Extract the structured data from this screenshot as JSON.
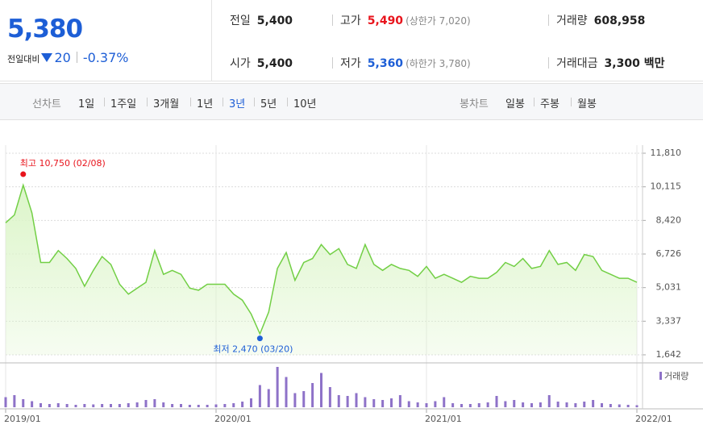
{
  "quote": {
    "price": "5,380",
    "change_label": "전일대비",
    "change": "20",
    "change_pct": "-0.37%"
  },
  "summary": {
    "rows": [
      [
        {
          "label": "전일",
          "value": "5,400"
        },
        {
          "label": "고가",
          "value": "5,490",
          "limit": "(상한가 7,020)"
        },
        {
          "label": "거래량",
          "value": "608,958"
        }
      ],
      [
        {
          "label": "시가",
          "value": "5,400"
        },
        {
          "label": "저가",
          "value": "5,360",
          "limit": "(하한가 3,780)"
        },
        {
          "label": "거래대금",
          "value": "3,300 백만"
        }
      ]
    ]
  },
  "tabs": {
    "line_label": "선차트",
    "periods": [
      "1일",
      "1주일",
      "3개월",
      "1년",
      "3년",
      "5년",
      "10년"
    ],
    "selected": 4,
    "candle_label": "봉차트",
    "candles": [
      "일봉",
      "주봉",
      "월봉"
    ]
  },
  "chart_data": [
    {
      "type": "line",
      "color": "#72cf45",
      "fill": "#dcf5c9",
      "categories": [
        "2019/01",
        null,
        null,
        null,
        null,
        null,
        null,
        null,
        null,
        null,
        null,
        null,
        null,
        null,
        null,
        null,
        null,
        null,
        null,
        null,
        null,
        null,
        null,
        null,
        "2020/01",
        null,
        null,
        null,
        null,
        null,
        null,
        null,
        null,
        null,
        null,
        null,
        null,
        null,
        null,
        null,
        null,
        null,
        null,
        null,
        null,
        null,
        null,
        null,
        "2021/01",
        null,
        null,
        null,
        null,
        null,
        null,
        null,
        null,
        null,
        null,
        null,
        null,
        null,
        null,
        null,
        null,
        null,
        null,
        null,
        null,
        null,
        null,
        null,
        "2022/01"
      ],
      "values": [
        8300,
        8700,
        10200,
        8800,
        6300,
        6300,
        6900,
        6500,
        6000,
        5100,
        5900,
        6600,
        6200,
        5200,
        4700,
        5000,
        5300,
        6900,
        5700,
        5900,
        5700,
        5000,
        4900,
        5200,
        5200,
        5200,
        4700,
        4400,
        3700,
        2700,
        3800,
        6000,
        6800,
        5400,
        6300,
        6500,
        7200,
        6700,
        7000,
        6200,
        6000,
        7200,
        6200,
        5900,
        6200,
        6000,
        5900,
        5600,
        6100,
        5500,
        5700,
        5500,
        5300,
        5600,
        5500,
        5500,
        5800,
        6300,
        6100,
        6500,
        6000,
        6100,
        6900,
        6200,
        6300,
        5900,
        6700,
        6600,
        5900,
        5700,
        5500,
        5500,
        5300
      ],
      "ylim": [
        1642,
        11810
      ],
      "yticks": [
        {
          "value": 1642,
          "label": "1,642"
        },
        {
          "value": 3337,
          "label": "3,337"
        },
        {
          "value": 5031,
          "label": "5,031"
        },
        {
          "value": 6726,
          "label": "6,726"
        },
        {
          "value": 8420,
          "label": "8,420"
        },
        {
          "value": 10115,
          "label": "10,115"
        },
        {
          "value": 11810,
          "label": "11,810"
        }
      ],
      "grid": true,
      "annotations": [
        {
          "text": "최고 10,750 (02/08)",
          "value": 10750,
          "color": "#e8141c",
          "kind": "max"
        },
        {
          "text": "최저 2,470 (03/20)",
          "value": 2470,
          "color": "#1e5fd6",
          "kind": "min"
        }
      ]
    },
    {
      "type": "bar",
      "series": [
        {
          "name": "거래량",
          "color": "#8e72c8",
          "values": [
            25,
            30,
            20,
            15,
            10,
            8,
            10,
            8,
            6,
            8,
            7,
            8,
            8,
            8,
            10,
            12,
            18,
            20,
            12,
            8,
            8,
            6,
            6,
            6,
            7,
            8,
            10,
            14,
            22,
            55,
            45,
            100,
            75,
            35,
            40,
            60,
            85,
            50,
            30,
            28,
            35,
            25,
            20,
            18,
            22,
            30,
            15,
            12,
            10,
            15,
            25,
            10,
            8,
            8,
            10,
            12,
            28,
            15,
            18,
            12,
            10,
            12,
            30,
            14,
            12,
            10,
            14,
            18,
            10,
            8,
            7,
            6,
            5
          ]
        }
      ]
    }
  ]
}
